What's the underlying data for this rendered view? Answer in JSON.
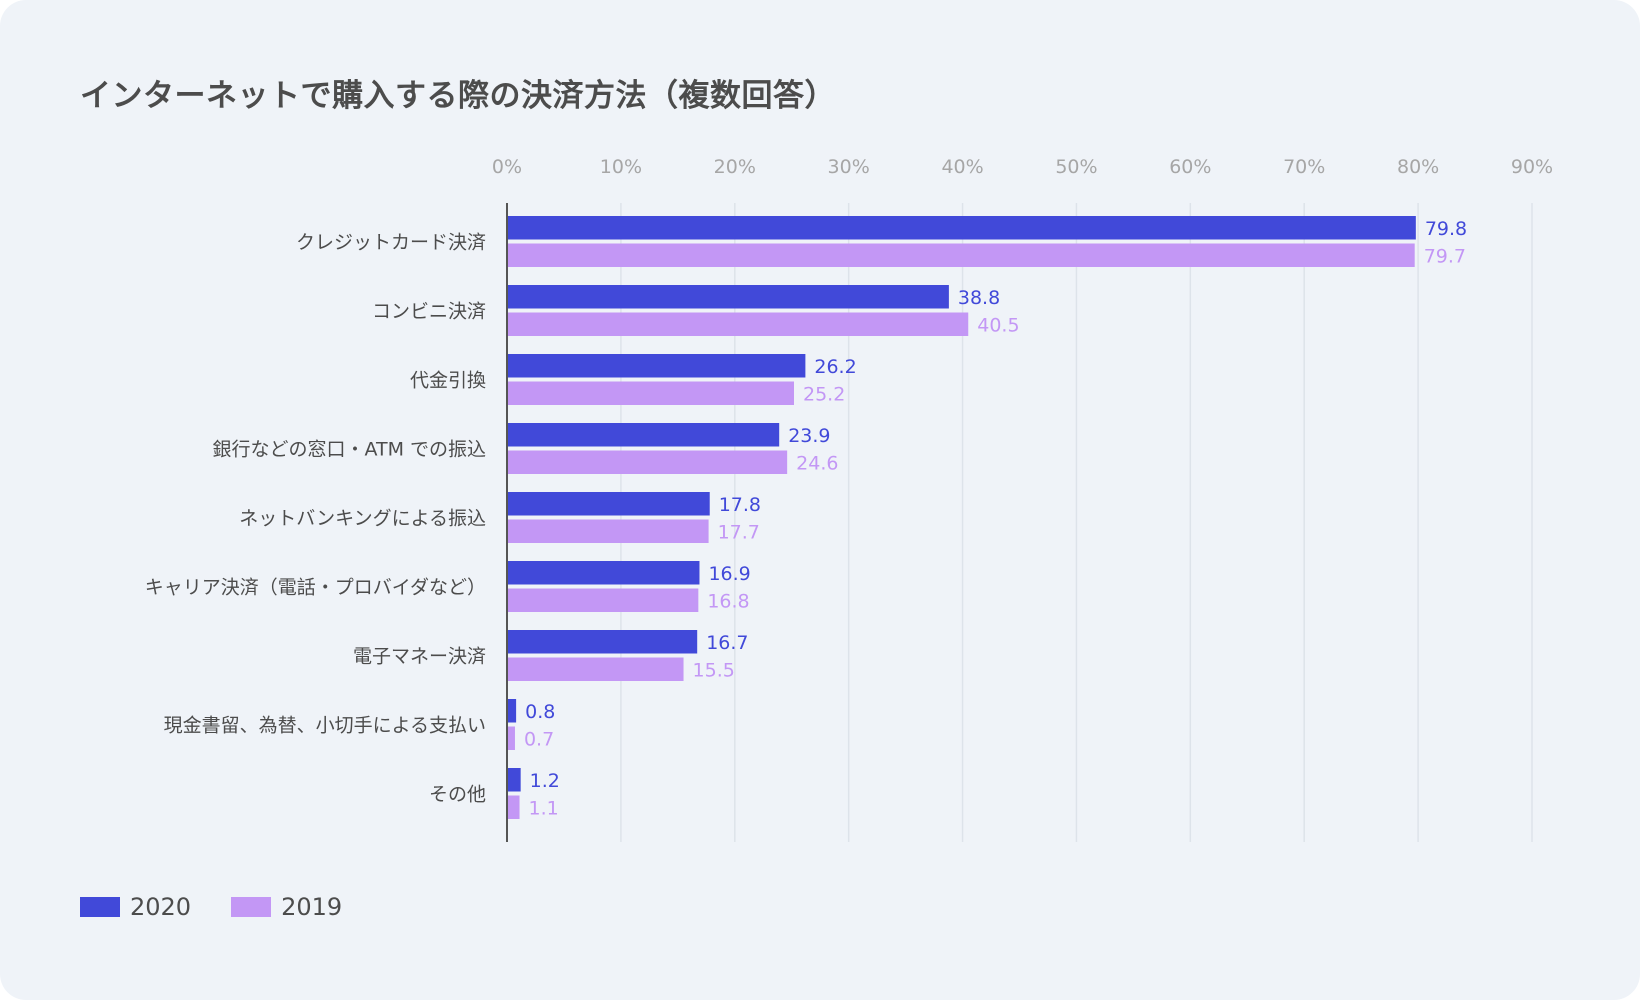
{
  "chart_data": {
    "type": "bar",
    "orientation": "horizontal",
    "title": "インターネットで購入する際の決済方法（複数回答）",
    "categories": [
      "クレジットカード決済",
      "コンビニ決済",
      "代金引換",
      "銀行などの窓口・ATM での振込",
      "ネットバンキングによる振込",
      "キャリア決済（電話・プロバイダなど）",
      "電子マネー決済",
      "現金書留、為替、小切手による支払い",
      "その他"
    ],
    "series": [
      {
        "name": "2020",
        "color": "#4149d9",
        "values": [
          79.8,
          38.8,
          26.2,
          23.9,
          17.8,
          16.9,
          16.7,
          0.8,
          1.2
        ],
        "labels": [
          "79.8",
          "38.8",
          "26.2",
          "23.9",
          "17.8",
          "16.9",
          "16.7",
          "0.8",
          "1.2"
        ]
      },
      {
        "name": "2019",
        "color": "#c397f5",
        "values": [
          79.7,
          40.5,
          25.2,
          24.6,
          17.7,
          16.8,
          15.5,
          0.7,
          1.1
        ],
        "labels": [
          "79.7",
          "40.5",
          "25.2",
          "24.6",
          "17.7",
          "16.8",
          "15.5",
          "0.7",
          "1.1"
        ]
      }
    ],
    "xlim": [
      0,
      90
    ],
    "xticks": [
      0,
      10,
      20,
      30,
      40,
      50,
      60,
      70,
      80,
      90
    ],
    "xtick_labels": [
      "0%",
      "10%",
      "20%",
      "30%",
      "40%",
      "50%",
      "60%",
      "70%",
      "80%",
      "90%"
    ],
    "xaxis_position": "top",
    "grid": true,
    "legend_position": "bottom-left",
    "colors": {
      "background": "#eff3f8",
      "gridline": "#dde3ea",
      "axis": "#555555",
      "tick_text": "#a6a6a6",
      "category_text": "#4c4c4c"
    }
  }
}
